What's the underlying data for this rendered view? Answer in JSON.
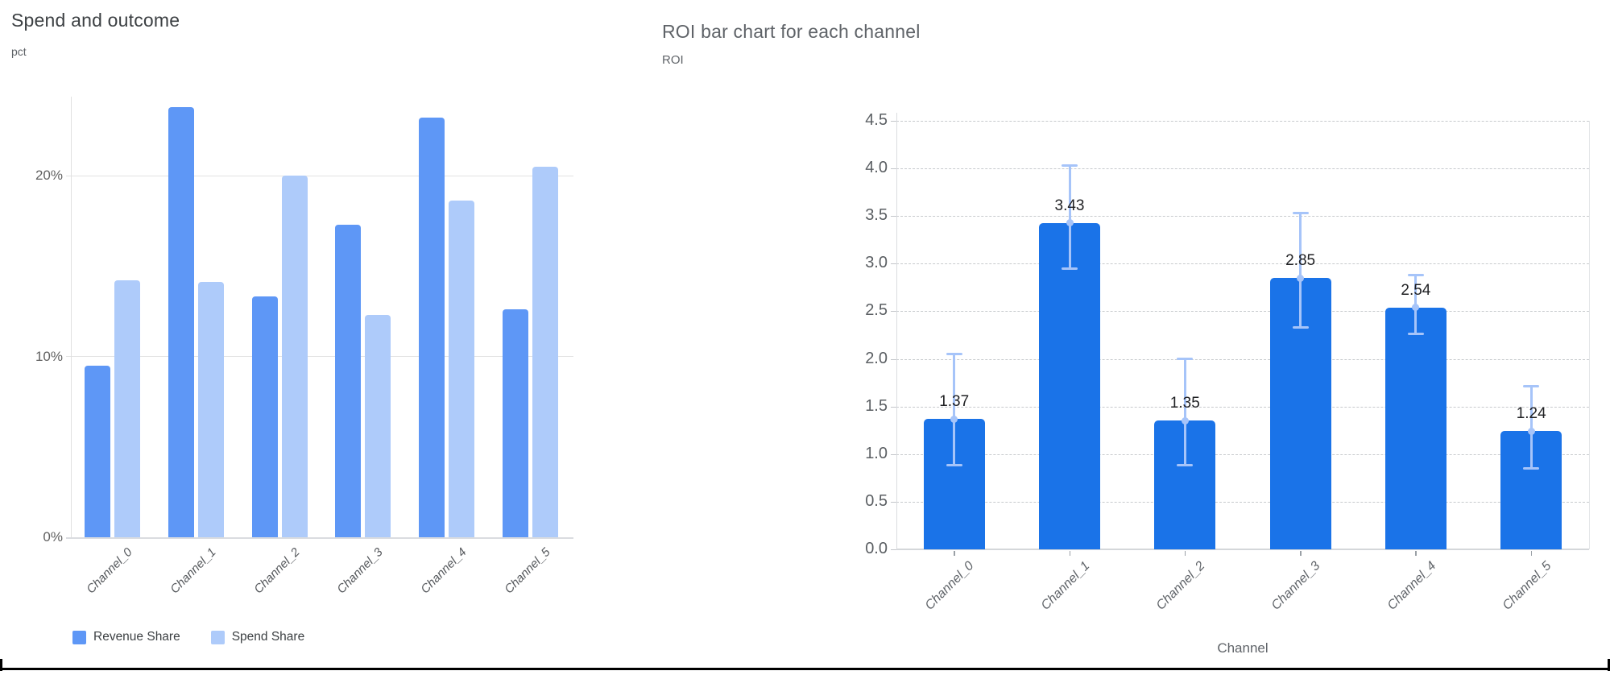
{
  "chart_data": [
    {
      "type": "bar",
      "title": "Spend and outcome",
      "ylabel": "pct",
      "xlabel": "",
      "categories": [
        "Channel_0",
        "Channel_1",
        "Channel_2",
        "Channel_3",
        "Channel_4",
        "Channel_5"
      ],
      "series": [
        {
          "name": "Revenue Share",
          "color": "#5e97f6",
          "values": [
            9.5,
            23.8,
            13.3,
            17.3,
            23.2,
            12.6
          ]
        },
        {
          "name": "Spend Share",
          "color": "#aecbfa",
          "values": [
            14.2,
            14.1,
            20.0,
            12.3,
            18.6,
            20.5
          ]
        }
      ],
      "y_ticks": [
        {
          "value": 0,
          "label": "0%"
        },
        {
          "value": 10,
          "label": "10%"
        },
        {
          "value": 20,
          "label": "20%"
        }
      ],
      "ylim": [
        0,
        25.3
      ],
      "grid": "horizontal-solid",
      "legend_position": "bottom-left",
      "colors": {
        "gridline": "#e3e3e3",
        "axis": "#dadce0"
      }
    },
    {
      "type": "bar",
      "title": "ROI bar chart for each channel",
      "ylabel": "ROI",
      "xlabel": "Channel",
      "categories": [
        "Channel_0",
        "Channel_1",
        "Channel_2",
        "Channel_3",
        "Channel_4",
        "Channel_5"
      ],
      "values": [
        1.37,
        3.43,
        1.35,
        2.85,
        2.54,
        1.24
      ],
      "value_labels": [
        "1.37",
        "3.43",
        "1.35",
        "2.85",
        "2.54",
        "1.24"
      ],
      "error_low": [
        0.88,
        2.95,
        0.88,
        2.33,
        2.26,
        0.85
      ],
      "error_high": [
        2.05,
        4.03,
        2.0,
        3.53,
        2.88,
        1.71
      ],
      "y_ticks": [
        {
          "value": 0.0,
          "label": "0.0"
        },
        {
          "value": 0.5,
          "label": "0.5"
        },
        {
          "value": 1.0,
          "label": "1.0"
        },
        {
          "value": 1.5,
          "label": "1.5"
        },
        {
          "value": 2.0,
          "label": "2.0"
        },
        {
          "value": 2.5,
          "label": "2.5"
        },
        {
          "value": 3.0,
          "label": "3.0"
        },
        {
          "value": 3.5,
          "label": "3.5"
        },
        {
          "value": 4.0,
          "label": "4.0"
        },
        {
          "value": 4.5,
          "label": "4.5"
        }
      ],
      "ylim": [
        0,
        4.5
      ],
      "grid": "horizontal-dashed",
      "legend_position": "none",
      "colors": {
        "bar": "#1a73e8",
        "error": "#a6c4f9",
        "gridline": "#c7cacd",
        "axis": "#dadce0",
        "value_label": "#202124"
      }
    }
  ]
}
